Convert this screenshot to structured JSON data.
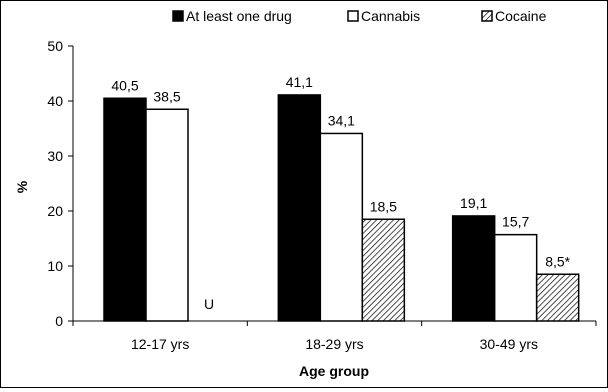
{
  "chart_data": {
    "type": "bar",
    "title": "",
    "xlabel": "Age group",
    "ylabel": "%",
    "ylim": [
      0,
      50
    ],
    "yticks": [
      0,
      10,
      20,
      30,
      40,
      50
    ],
    "grid": false,
    "legend_position": "top",
    "categories": [
      "12-17 yrs",
      "18-29 yrs",
      "30-49 yrs"
    ],
    "series": [
      {
        "name": "At least one drug",
        "fill": "#000000",
        "pattern": "solid",
        "values": [
          40.5,
          41.1,
          19.1
        ],
        "labels": [
          "40,5",
          "41,1",
          "19,1"
        ]
      },
      {
        "name": "Cannabis",
        "fill": "#ffffff",
        "pattern": "solid",
        "values": [
          38.5,
          34.1,
          15.7
        ],
        "labels": [
          "38,5",
          "34,1",
          "15,7"
        ]
      },
      {
        "name": "Cocaine",
        "fill": "#ffffff",
        "pattern": "hatch",
        "values": [
          null,
          18.5,
          8.5
        ],
        "labels": [
          "U",
          "18,5",
          "8,5*"
        ]
      }
    ]
  }
}
